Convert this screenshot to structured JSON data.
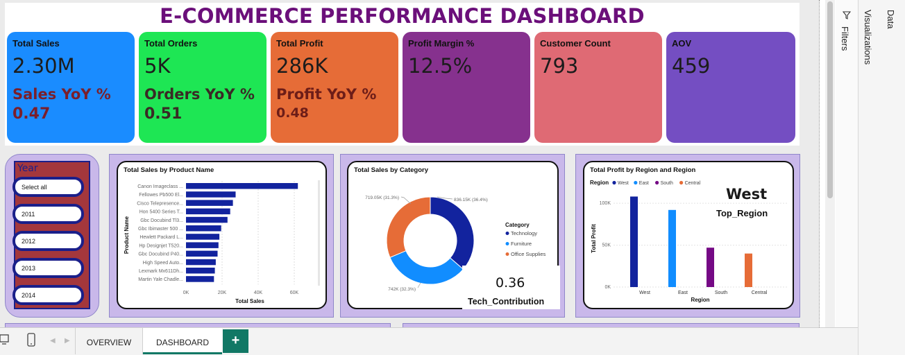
{
  "title": "E-COMMERCE PERFORMANCE DASHBOARD",
  "kpis": [
    {
      "label": "Total Sales",
      "value": "2.30M",
      "yoy_label": "Sales YoY %",
      "yoy_value": "0.47",
      "color": "#1a8cff"
    },
    {
      "label": "Total Orders",
      "value": "5K",
      "yoy_label": "Orders YoY %",
      "yoy_value": "0.51",
      "color": "#1ee654"
    },
    {
      "label": "Total Profit",
      "value": "286K",
      "yoy_label": "Profit YoY %",
      "yoy_value": "0.48",
      "color": "#e66c37"
    },
    {
      "label": "Profit Margin %",
      "value": "12.5%",
      "color": "#86318e"
    },
    {
      "label": "Customer Count",
      "value": "793",
      "color": "#df6a74"
    },
    {
      "label": "AOV",
      "value": "459",
      "color": "#744ec2"
    }
  ],
  "slicer": {
    "title": "Year",
    "items": [
      "Select all",
      "2011",
      "2012",
      "2013",
      "2014"
    ]
  },
  "sales_by_product": {
    "title": "Total Sales by Product Name",
    "ylabel": "Product Name",
    "xlabel": "Total Sales",
    "ticks": [
      "0K",
      "20K",
      "40K",
      "60K"
    ]
  },
  "sales_by_category": {
    "title": "Total Sales by Category",
    "legend_title": "Category",
    "labels": [
      "836.15K (36.4%)",
      "742K (32.3%)",
      "719.05K (31.3%)"
    ]
  },
  "tech_card": {
    "value": "0.36",
    "label": "Tech_Contribution"
  },
  "profit_by_region": {
    "title": "Total Profit by Region and Region",
    "legend_title": "Region",
    "ylabel": "Total Profit",
    "xlabel": "Region",
    "ticks": [
      "100K",
      "50K",
      "0K"
    ]
  },
  "top_region": {
    "value": "West",
    "label": "Top_Region"
  },
  "chart_data": [
    {
      "type": "bar",
      "title": "Total Sales by Product Name",
      "xlabel": "Total Sales",
      "ylabel": "Product Name",
      "categories": [
        "Canon Imageclass ...",
        "Fellowes Pb500 El...",
        "Cisco Telepresence...",
        "Hon 5400 Series T...",
        "Gbc Docubind Tl3...",
        "Gbc Ibimaster 500 ...",
        "Hewlett Packard L...",
        "Hp Designjet T520...",
        "Gbc Docubind P40...",
        "High Speed Auto...",
        "Lexmark Mx611Dh...",
        "Martin Yale Chadle..."
      ],
      "values": [
        62000,
        27500,
        26000,
        24500,
        23000,
        19500,
        18500,
        18000,
        17500,
        16500,
        16000,
        15500
      ],
      "xlim": [
        0,
        70000
      ]
    },
    {
      "type": "pie",
      "title": "Total Sales by Category",
      "categories": [
        "Technology",
        "Furniture",
        "Office Supplies"
      ],
      "values": [
        836150,
        742000,
        719050
      ],
      "colors": [
        "#12239e",
        "#118dff",
        "#e66c37"
      ]
    },
    {
      "type": "bar",
      "title": "Total Profit by Region and Region",
      "xlabel": "Region",
      "ylabel": "Total Profit",
      "categories": [
        "West",
        "East",
        "South",
        "Central"
      ],
      "values": [
        108000,
        92000,
        47000,
        40000
      ],
      "colors": [
        "#12239e",
        "#118dff",
        "#750985",
        "#e66c37"
      ],
      "ylim": [
        0,
        115000
      ]
    }
  ],
  "tabs": [
    "OVERVIEW",
    "DASHBOARD"
  ],
  "add_tab": "+",
  "side_panels": [
    "Filters",
    "Visualizations",
    "Data"
  ]
}
